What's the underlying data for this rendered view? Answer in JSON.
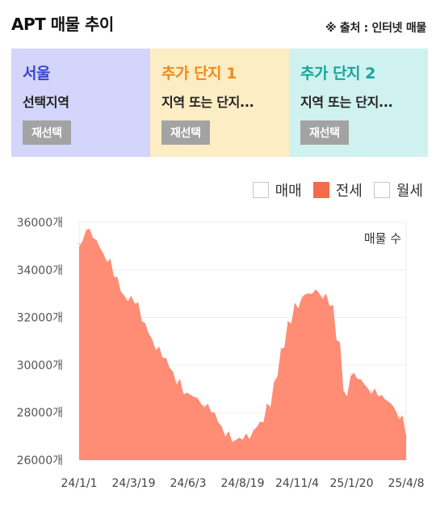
{
  "header": {
    "title": "APT 매물 추이",
    "source": "※ 출처 : 인터넷 매물"
  },
  "cards": [
    {
      "title": "서울",
      "subtitle": "선택지역",
      "button": "재선택"
    },
    {
      "title": "추가 단지 1",
      "subtitle": "지역 또는 단지...",
      "button": "재선택"
    },
    {
      "title": "추가 단지 2",
      "subtitle": "지역 또는 단지...",
      "button": "재선택"
    }
  ],
  "legend": [
    {
      "label": "매매",
      "checked": false
    },
    {
      "label": "전세",
      "checked": true
    },
    {
      "label": "월세",
      "checked": false
    }
  ],
  "colors": {
    "series": "#ff8c75",
    "accent": "#f26c4a"
  },
  "chart_data": {
    "type": "area",
    "annotation": "매물 수",
    "y_ticks": [
      "36000개",
      "34000개",
      "32000개",
      "30000개",
      "28000개",
      "26000개"
    ],
    "x_ticks": [
      "24/1/1",
      "24/3/19",
      "24/6/3",
      "24/8/19",
      "24/11/4",
      "25/1/20",
      "25/4/8"
    ],
    "ylim": [
      26000,
      36000
    ],
    "series": [
      {
        "x": [
          "24/1/1",
          "24/1/11",
          "24/1/21",
          "24/2/1",
          "24/2/11",
          "24/2/21",
          "24/3/1",
          "24/3/11",
          "24/3/19",
          "24/4/1",
          "24/4/11",
          "24/4/21",
          "24/5/1",
          "24/5/11",
          "24/5/21",
          "24/6/3",
          "24/6/11",
          "24/6/21",
          "24/7/1",
          "24/7/11",
          "24/7/21",
          "24/8/1",
          "24/8/11",
          "24/8/19",
          "24/9/1",
          "24/9/11",
          "24/9/21",
          "24/10/1",
          "24/10/11",
          "24/10/21",
          "24/11/4",
          "24/11/11",
          "24/11/21",
          "24/12/1",
          "24/12/11",
          "24/12/21",
          "25/1/1",
          "25/1/11",
          "25/1/20",
          "25/2/1",
          "25/2/11",
          "25/2/21",
          "25/3/1",
          "25/3/11",
          "25/3/21",
          "25/4/1",
          "25/4/8",
          "25/4/15"
        ],
        "values": [
          35100,
          35700,
          35300,
          34800,
          34400,
          33700,
          33000,
          32800,
          32600,
          31800,
          31200,
          30700,
          30300,
          29800,
          29300,
          28800,
          28700,
          28500,
          28300,
          28000,
          27500,
          27100,
          26800,
          26900,
          27000,
          27300,
          27600,
          28300,
          29400,
          30700,
          31800,
          32500,
          32900,
          33000,
          33100,
          32900,
          32500,
          31000,
          28800,
          29600,
          29400,
          29100,
          28900,
          28700,
          28500,
          28200,
          27800,
          27000
        ]
      }
    ]
  }
}
